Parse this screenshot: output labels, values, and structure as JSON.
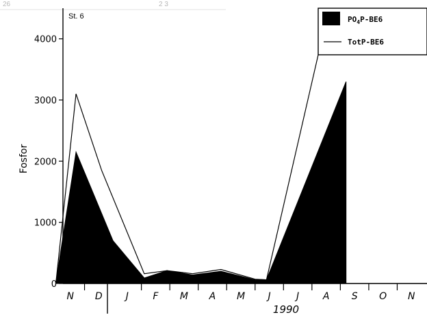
{
  "header_marks": {
    "left": "26",
    "center": "2 3"
  },
  "chart_data": {
    "type": "area",
    "title": "",
    "station_label": "St. 6",
    "xlabel": "",
    "ylabel": "Fosfor",
    "year_label": "1990",
    "ylim": [
      0,
      4500
    ],
    "yticks": [
      0,
      1000,
      2000,
      3000,
      4000
    ],
    "grid": false,
    "legend_placement": "top-right",
    "month_labels": [
      "N",
      "D",
      "J",
      "F",
      "M",
      "A",
      "M",
      "J",
      "J",
      "A",
      "S",
      "O",
      "N"
    ],
    "series": [
      {
        "name": "PO4P-BE6",
        "name_base": "PO",
        "name_sub": "4",
        "name_rest": "P-BE6",
        "style": "filled",
        "color": "#000000",
        "points": [
          [
            0.0,
            40
          ],
          [
            0.7,
            2150
          ],
          [
            2.0,
            700
          ],
          [
            3.1,
            90
          ],
          [
            3.9,
            210
          ],
          [
            4.8,
            140
          ],
          [
            5.8,
            200
          ],
          [
            7.0,
            60
          ],
          [
            7.4,
            60
          ],
          [
            10.2,
            3300
          ]
        ]
      },
      {
        "name": "TotP-BE6",
        "style": "line",
        "color": "#000000",
        "points": [
          [
            0.0,
            40
          ],
          [
            0.7,
            3100
          ],
          [
            1.6,
            1850
          ],
          [
            3.1,
            160
          ],
          [
            3.9,
            210
          ],
          [
            4.8,
            160
          ],
          [
            5.8,
            230
          ],
          [
            7.0,
            70
          ],
          [
            7.4,
            60
          ],
          [
            9.35,
            4000
          ],
          [
            9.75,
            4500
          ]
        ]
      }
    ]
  }
}
